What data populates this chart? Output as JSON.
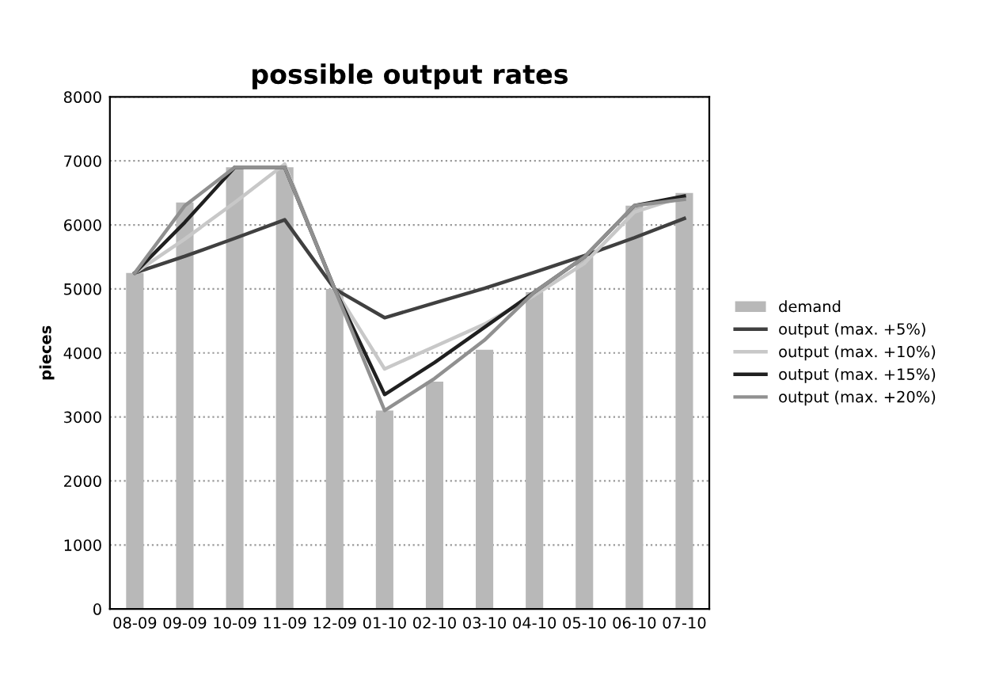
{
  "chart_data": {
    "type": "bar",
    "title": "possible output rates",
    "ylabel": "pieces",
    "categories": [
      "08-09",
      "09-09",
      "10-09",
      "11-09",
      "12-09",
      "01-10",
      "02-10",
      "03-10",
      "04-10",
      "05-10",
      "06-10",
      "07-10"
    ],
    "series": [
      {
        "name": "demand",
        "color": "#b8b8b8",
        "values": [
          5250,
          6350,
          6900,
          6900,
          5000,
          3100,
          3550,
          4050,
          4950,
          5500,
          6300,
          6500
        ]
      },
      {
        "name": "output (max. +5%)",
        "type": "line",
        "color": "#404040",
        "values": [
          5250,
          5510,
          5790,
          6080,
          5000,
          4550,
          4780,
          5010,
          5260,
          5520,
          5800,
          6100
        ]
      },
      {
        "name": "output (max. +10%)",
        "type": "line",
        "color": "#c8c8c8",
        "values": [
          5250,
          5780,
          6350,
          6950,
          5000,
          3750,
          4100,
          4450,
          4900,
          5400,
          6200,
          6450
        ]
      },
      {
        "name": "output (max. +15%)",
        "type": "line",
        "color": "#202020",
        "values": [
          5250,
          6040,
          6900,
          6900,
          5000,
          3350,
          3850,
          4400,
          4950,
          5500,
          6300,
          6450
        ]
      },
      {
        "name": "output (max. +20%)",
        "type": "line",
        "color": "#909090",
        "values": [
          5250,
          6300,
          6900,
          6900,
          5000,
          3100,
          3600,
          4200,
          4950,
          5500,
          6300,
          6400
        ]
      }
    ],
    "ylim": [
      0,
      8000
    ],
    "yticks": [
      0,
      1000,
      2000,
      3000,
      4000,
      5000,
      6000,
      7000,
      8000
    ],
    "grid": "y",
    "legend": "right"
  }
}
